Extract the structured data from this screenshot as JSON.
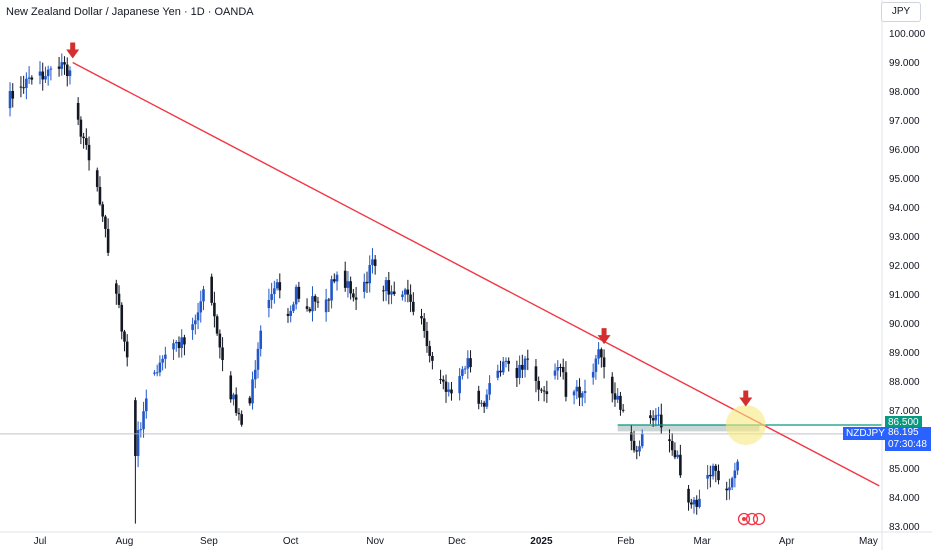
{
  "header": {
    "title": "New Zealand Dollar / Japanese Yen · 1D · OANDA"
  },
  "price_axis": {
    "currency": "JPY"
  },
  "badges": {
    "level_price": "86.500",
    "symbol": "NZDJPY",
    "last_price": "86.195",
    "countdown": "07:30:48"
  },
  "colors": {
    "up": "#2157c9",
    "down": "#131722",
    "trendline": "#f23645",
    "level_line": "#089981",
    "highlight": "#f7ea7f",
    "arrow": "#d32f2f"
  },
  "chart_data": {
    "type": "candlestick",
    "title": "New Zealand Dollar / Japanese Yen · 1D · OANDA",
    "interval": "1D",
    "ylim": [
      82.9,
      100.6
    ],
    "y_ticks": [
      "83.000",
      "84.000",
      "85.000",
      "86.000",
      "87.000",
      "88.000",
      "89.000",
      "90.000",
      "91.000",
      "92.000",
      "93.000",
      "94.000",
      "95.000",
      "96.000",
      "97.000",
      "98.000",
      "99.000",
      "100.000"
    ],
    "x_ticks": [
      {
        "label": "Jul",
        "day": 0
      },
      {
        "label": "Aug",
        "day": 31
      },
      {
        "label": "Sep",
        "day": 62
      },
      {
        "label": "Oct",
        "day": 92
      },
      {
        "label": "Nov",
        "day": 123
      },
      {
        "label": "Dec",
        "day": 153
      },
      {
        "label": "2025",
        "day": 184,
        "bold": true
      },
      {
        "label": "Feb",
        "day": 215
      },
      {
        "label": "Mar",
        "day": 243
      },
      {
        "label": "Apr",
        "day": 274
      },
      {
        "label": "May",
        "day": 304
      }
    ],
    "trendline": {
      "start": {
        "day": 12,
        "price": 99.0
      },
      "end": {
        "day": 308,
        "price": 84.4
      }
    },
    "horizontal_level": {
      "price": 86.5,
      "from_day": 264
    },
    "support_zone": {
      "from_day": 212,
      "to_day": 264,
      "low": 86.28,
      "high": 86.52
    },
    "last_price": 86.195,
    "highlight_circle": {
      "day": 259,
      "price": 86.5
    },
    "arrows": [
      {
        "day": 12,
        "price": 99.0
      },
      {
        "day": 207,
        "price": 89.15
      },
      {
        "day": 259,
        "price": 87.0
      }
    ],
    "anchors": [
      {
        "day": -12,
        "price": 97.7
      },
      {
        "day": -5,
        "price": 98.3
      },
      {
        "day": 2,
        "price": 98.6
      },
      {
        "day": 7,
        "price": 98.8
      },
      {
        "day": 12,
        "price": 98.7
      },
      {
        "day": 13,
        "price": 97.5
      },
      {
        "day": 15,
        "price": 96.4
      },
      {
        "day": 18,
        "price": 95.7
      },
      {
        "day": 21,
        "price": 94.8
      },
      {
        "day": 24,
        "price": 93.3
      },
      {
        "day": 26,
        "price": 91.8
      },
      {
        "day": 28,
        "price": 90.9
      },
      {
        "day": 31,
        "price": 89.5
      },
      {
        "day": 34,
        "price": 87.4
      },
      {
        "day": 35,
        "price": 85.6
      },
      {
        "day": 37,
        "price": 86.6
      },
      {
        "day": 39,
        "price": 87.5
      },
      {
        "day": 42,
        "price": 88.3
      },
      {
        "day": 45,
        "price": 88.9
      },
      {
        "day": 49,
        "price": 89.3
      },
      {
        "day": 53,
        "price": 89.3
      },
      {
        "day": 57,
        "price": 90.1
      },
      {
        "day": 62,
        "price": 91.5
      },
      {
        "day": 64,
        "price": 90.2
      },
      {
        "day": 67,
        "price": 88.8
      },
      {
        "day": 70,
        "price": 87.6
      },
      {
        "day": 74,
        "price": 86.7
      },
      {
        "day": 77,
        "price": 87.4
      },
      {
        "day": 79,
        "price": 88.6
      },
      {
        "day": 81,
        "price": 89.7
      },
      {
        "day": 84,
        "price": 90.6
      },
      {
        "day": 87,
        "price": 91.2
      },
      {
        "day": 91,
        "price": 90.4
      },
      {
        "day": 94,
        "price": 91.2
      },
      {
        "day": 98,
        "price": 90.4
      },
      {
        "day": 101,
        "price": 90.9
      },
      {
        "day": 104,
        "price": 90.6
      },
      {
        "day": 107,
        "price": 91.3
      },
      {
        "day": 111,
        "price": 91.6
      },
      {
        "day": 115,
        "price": 90.8
      },
      {
        "day": 119,
        "price": 91.4
      },
      {
        "day": 122,
        "price": 92.1
      },
      {
        "day": 125,
        "price": 91.4
      },
      {
        "day": 128,
        "price": 91.2
      },
      {
        "day": 131,
        "price": 90.6
      },
      {
        "day": 134,
        "price": 90.9
      },
      {
        "day": 138,
        "price": 90.3
      },
      {
        "day": 141,
        "price": 89.8
      },
      {
        "day": 144,
        "price": 88.5
      },
      {
        "day": 147,
        "price": 88.0
      },
      {
        "day": 150,
        "price": 87.6
      },
      {
        "day": 153,
        "price": 87.7
      },
      {
        "day": 157,
        "price": 88.6
      },
      {
        "day": 160,
        "price": 87.6
      },
      {
        "day": 163,
        "price": 87.1
      },
      {
        "day": 167,
        "price": 88.3
      },
      {
        "day": 171,
        "price": 88.7
      },
      {
        "day": 175,
        "price": 88.2
      },
      {
        "day": 178,
        "price": 88.9
      },
      {
        "day": 181,
        "price": 88.4
      },
      {
        "day": 184,
        "price": 87.6
      },
      {
        "day": 187,
        "price": 87.9
      },
      {
        "day": 191,
        "price": 88.4
      },
      {
        "day": 194,
        "price": 87.4
      },
      {
        "day": 197,
        "price": 87.6
      },
      {
        "day": 200,
        "price": 87.9
      },
      {
        "day": 203,
        "price": 88.6
      },
      {
        "day": 206,
        "price": 89.0
      },
      {
        "day": 208,
        "price": 88.4
      },
      {
        "day": 211,
        "price": 87.4
      },
      {
        "day": 214,
        "price": 86.9
      },
      {
        "day": 217,
        "price": 86.0
      },
      {
        "day": 220,
        "price": 85.6
      },
      {
        "day": 223,
        "price": 86.6
      },
      {
        "day": 226,
        "price": 87.0
      },
      {
        "day": 229,
        "price": 86.4
      },
      {
        "day": 232,
        "price": 85.6
      },
      {
        "day": 235,
        "price": 85.0
      },
      {
        "day": 238,
        "price": 84.1
      },
      {
        "day": 241,
        "price": 83.9
      },
      {
        "day": 244,
        "price": 84.5
      },
      {
        "day": 247,
        "price": 84.9
      },
      {
        "day": 250,
        "price": 84.2
      },
      {
        "day": 253,
        "price": 84.4
      },
      {
        "day": 256,
        "price": 85.2
      },
      {
        "day": 257,
        "price": 86.195
      }
    ]
  }
}
